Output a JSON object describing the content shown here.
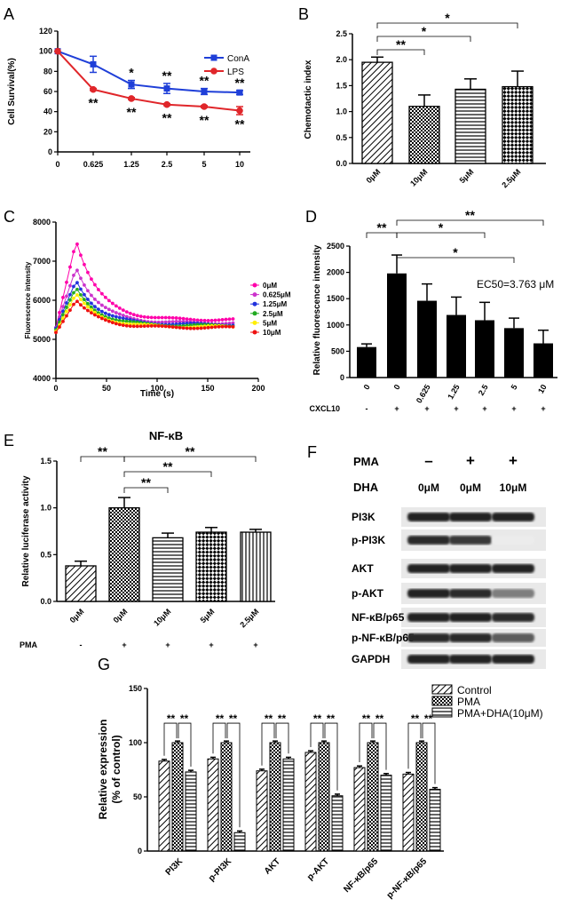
{
  "figure": {
    "panel_letters": [
      "A",
      "B",
      "C",
      "D",
      "E",
      "F",
      "G"
    ]
  },
  "chart_data": [
    {
      "panel": "A",
      "type": "line",
      "ylabel": "Cell Survival(%)",
      "x": [
        "0",
        "0.625",
        "1.25",
        "2.5",
        "5",
        "10"
      ],
      "ylim": [
        0,
        120
      ],
      "yticks": [
        "0",
        "20",
        "40",
        "60",
        "80",
        "100",
        "120"
      ],
      "series": [
        {
          "name": "ConA",
          "color": "#1f3fd8",
          "values": [
            100,
            87,
            67,
            63,
            60,
            59
          ],
          "errors": [
            0,
            8,
            4,
            5,
            3,
            2
          ],
          "stars": [
            "",
            "",
            "*",
            "**",
            "**",
            "**"
          ]
        },
        {
          "name": "LPS",
          "color": "#e0262a",
          "values": [
            100,
            62,
            53,
            47,
            45,
            41
          ],
          "errors": [
            0,
            1,
            1,
            1,
            1,
            4
          ],
          "stars": [
            "",
            "**",
            "**",
            "**",
            "**",
            "**"
          ]
        }
      ]
    },
    {
      "panel": "B",
      "type": "bar",
      "ylabel": "Chemotactic index",
      "categories": [
        "0μM",
        "10μM",
        "5μM",
        "2.5μM"
      ],
      "values": [
        1.95,
        1.1,
        1.43,
        1.48
      ],
      "errors": [
        0.1,
        0.22,
        0.2,
        0.3
      ],
      "patterns": [
        "diag",
        "dots",
        "hlines",
        "cross"
      ],
      "ylim": [
        0,
        2.5
      ],
      "yticks": [
        "0.0",
        "0.5",
        "1.0",
        "1.5",
        "2.0",
        "2.5"
      ],
      "brackets": [
        {
          "from": 0,
          "to": 1,
          "label": "**"
        },
        {
          "from": 0,
          "to": 2,
          "label": "*"
        },
        {
          "from": 0,
          "to": 3,
          "label": "*"
        }
      ]
    },
    {
      "panel": "C",
      "type": "line",
      "xlabel": "Time (s)",
      "ylabel": "Fluorescence intensity",
      "xlim": [
        0,
        200
      ],
      "xticks": [
        "0",
        "50",
        "100",
        "150",
        "200"
      ],
      "ylim": [
        4000,
        8000
      ],
      "yticks": [
        "4000",
        "5000",
        "6000",
        "7000",
        "8000"
      ],
      "series": [
        {
          "name": "0μM",
          "color": "#ff00aa",
          "peak": 7550,
          "base": 5500
        },
        {
          "name": "0.625μM",
          "color": "#cc33cc",
          "peak": 6850,
          "base": 5420
        },
        {
          "name": "1.25μM",
          "color": "#2233dd",
          "peak": 6500,
          "base": 5380
        },
        {
          "name": "2.5μM",
          "color": "#22aa22",
          "peak": 6300,
          "base": 5350
        },
        {
          "name": "5μM",
          "color": "#ffee00",
          "peak": 6150,
          "base": 5320
        },
        {
          "name": "10μM",
          "color": "#ee1111",
          "peak": 6000,
          "base": 5300
        }
      ]
    },
    {
      "panel": "D",
      "type": "bar",
      "ylabel": "Relative fluorescence intensity",
      "categories": [
        "0",
        "0",
        "0.625",
        "1.25",
        "2.5",
        "5",
        "10"
      ],
      "cxcl10_label": "CXCL10",
      "cxcl10": [
        "-",
        "+",
        "+",
        "+",
        "+",
        "+",
        "+"
      ],
      "values": [
        580,
        1980,
        1460,
        1190,
        1090,
        940,
        650
      ],
      "errors": [
        60,
        350,
        320,
        340,
        340,
        190,
        250
      ],
      "ylim": [
        0,
        2500
      ],
      "yticks": [
        "0",
        "500",
        "1000",
        "1500",
        "2000",
        "2500"
      ],
      "annotation": "EC50=3.763 μM",
      "brackets": [
        {
          "from": 0,
          "to": 1,
          "label": "**"
        },
        {
          "from": 1,
          "to": 4,
          "label": "*"
        },
        {
          "from": 1,
          "to": 5,
          "label": "*"
        },
        {
          "from": 1,
          "to": 6,
          "label": "**"
        }
      ]
    },
    {
      "panel": "E",
      "type": "bar",
      "title": "NF-κB",
      "ylabel": "Relative luciferase activity",
      "categories": [
        "0μM",
        "0μM",
        "10μM",
        "5μM",
        "2.5μM"
      ],
      "pma_label": "PMA",
      "pma": [
        "-",
        "+",
        "+",
        "+",
        "+"
      ],
      "values": [
        0.38,
        1.0,
        0.68,
        0.74,
        0.74
      ],
      "errors": [
        0.05,
        0.11,
        0.05,
        0.05,
        0.03
      ],
      "patterns": [
        "diag",
        "dots",
        "hlines",
        "cross",
        "vlines"
      ],
      "ylim": [
        0,
        1.5
      ],
      "yticks": [
        "0.0",
        "0.5",
        "1.0",
        "1.5"
      ],
      "brackets": [
        {
          "from": 0,
          "to": 1,
          "label": "**"
        },
        {
          "from": 1,
          "to": 2,
          "label": "**"
        },
        {
          "from": 1,
          "to": 3,
          "label": "**"
        },
        {
          "from": 1,
          "to": 4,
          "label": "**"
        }
      ]
    },
    {
      "panel": "G",
      "type": "bar",
      "ylabel_line1": "Relative expression",
      "ylabel_line2": "(% of control)",
      "categories": [
        "PI3K",
        "p-PI3K",
        "AKT",
        "p-AKT",
        "NF-κB/p65",
        "p-NF-κB/p65"
      ],
      "ylim": [
        0,
        150
      ],
      "yticks": [
        "0",
        "50",
        "100",
        "150"
      ],
      "series": [
        {
          "name": "Control",
          "pattern": "diag",
          "values": [
            83,
            85,
            74,
            91,
            77,
            71
          ]
        },
        {
          "name": "PMA",
          "pattern": "dots",
          "values": [
            100,
            100,
            100,
            100,
            100,
            100
          ]
        },
        {
          "name": "PMA+DHA(10μM)",
          "pattern": "hlines",
          "values": [
            73,
            17,
            85,
            51,
            70,
            57
          ]
        }
      ],
      "stars": "**"
    }
  ],
  "blot": {
    "panel": "F",
    "pma_label": "PMA",
    "dha_label": "DHA",
    "pma": [
      "–",
      "+",
      "+"
    ],
    "dha": [
      "0μM",
      "0μM",
      "10μM"
    ],
    "rows": [
      {
        "label": "PI3K",
        "intensity": [
          0.95,
          0.95,
          0.95
        ]
      },
      {
        "label": "p-PI3K",
        "intensity": [
          0.9,
          0.85,
          0.08
        ]
      },
      {
        "label": "AKT",
        "intensity": [
          0.95,
          0.95,
          0.95
        ]
      },
      {
        "label": "p-AKT",
        "intensity": [
          0.95,
          0.9,
          0.55
        ]
      },
      {
        "label": "NF-κB/p65",
        "intensity": [
          0.95,
          0.95,
          0.9
        ]
      },
      {
        "label": "p-NF-κB/p65",
        "intensity": [
          0.9,
          0.9,
          0.7
        ]
      },
      {
        "label": "GAPDH",
        "intensity": [
          0.95,
          0.95,
          0.95
        ]
      }
    ]
  }
}
